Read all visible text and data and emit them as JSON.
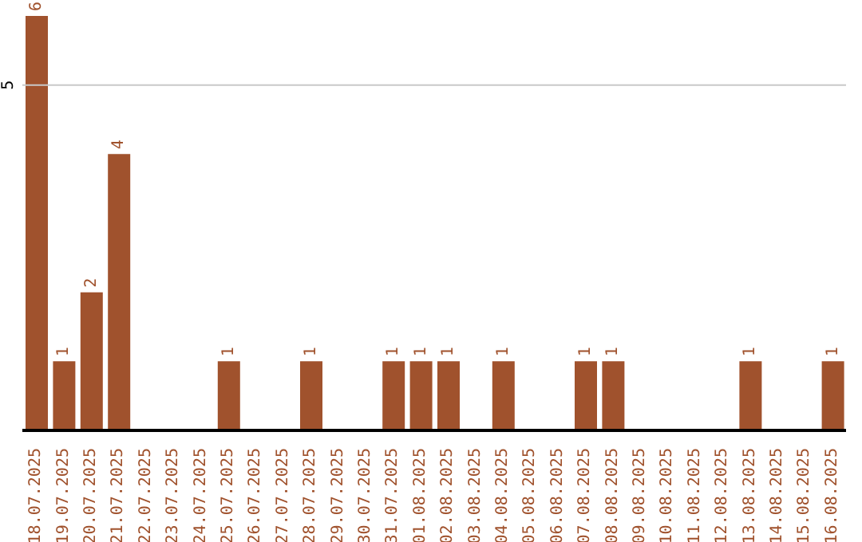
{
  "chart_data": {
    "type": "bar",
    "categories": [
      "18.07.2025",
      "19.07.2025",
      "20.07.2025",
      "21.07.2025",
      "22.07.2025",
      "23.07.2025",
      "24.07.2025",
      "25.07.2025",
      "26.07.2025",
      "27.07.2025",
      "28.07.2025",
      "29.07.2025",
      "30.07.2025",
      "31.07.2025",
      "01.08.2025",
      "02.08.2025",
      "03.08.2025",
      "04.08.2025",
      "05.08.2025",
      "06.08.2025",
      "07.08.2025",
      "08.08.2025",
      "09.08.2025",
      "10.08.2025",
      "11.08.2025",
      "12.08.2025",
      "13.08.2025",
      "14.08.2025",
      "15.08.2025",
      "16.08.2025"
    ],
    "values": [
      6,
      1,
      2,
      4,
      null,
      null,
      null,
      1,
      null,
      null,
      1,
      null,
      null,
      1,
      1,
      1,
      null,
      1,
      null,
      null,
      1,
      1,
      null,
      null,
      null,
      null,
      1,
      null,
      null,
      1
    ],
    "color": "#a0522d",
    "ylim": [
      0,
      6
    ],
    "yticks": [
      5
    ],
    "grid": "y",
    "data_labels": true
  }
}
